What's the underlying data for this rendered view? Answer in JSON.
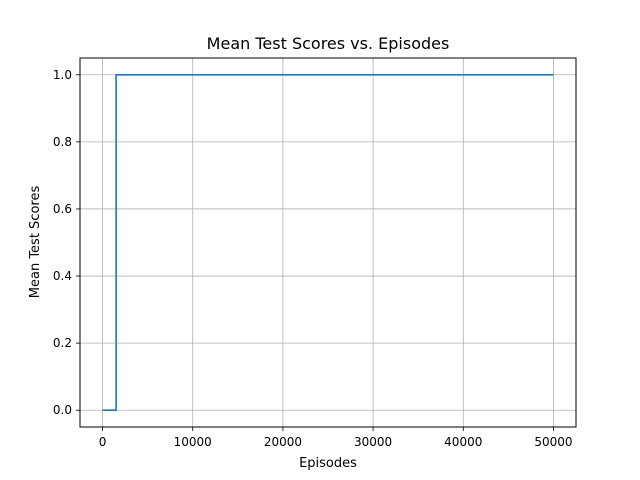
{
  "chart_data": {
    "type": "line",
    "title": "Mean Test Scores vs. Episodes",
    "xlabel": "Episodes",
    "ylabel": "Mean Test Scores",
    "xlim": [
      -2500,
      52500
    ],
    "ylim": [
      -0.05,
      1.05
    ],
    "x_ticks": [
      0,
      10000,
      20000,
      30000,
      40000,
      50000
    ],
    "x_tick_labels": [
      "0",
      "10000",
      "20000",
      "30000",
      "40000",
      "50000"
    ],
    "y_ticks": [
      0.0,
      0.2,
      0.4,
      0.6,
      0.8,
      1.0
    ],
    "y_tick_labels": [
      "0.0",
      "0.2",
      "0.4",
      "0.6",
      "0.8",
      "1.0"
    ],
    "grid": true,
    "legend": "none",
    "series": [
      {
        "color": "#1f77b4",
        "x": [
          0,
          1500,
          1500,
          50000
        ],
        "y": [
          0.0,
          0.0,
          1.0,
          1.0
        ]
      }
    ]
  }
}
